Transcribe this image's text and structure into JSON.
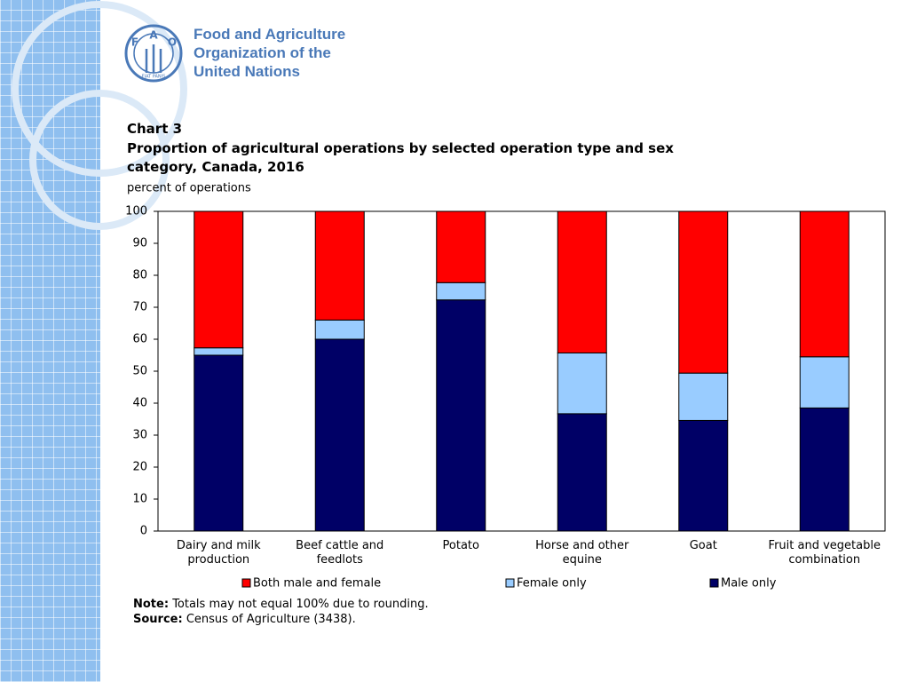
{
  "logo": {
    "letters": [
      "F",
      "A",
      "O"
    ],
    "motto": "FIAT PANIS",
    "name_lines": [
      "Food and Agriculture",
      "Organization of the",
      "United Nations"
    ]
  },
  "chart_data": {
    "type": "stacked_bar",
    "title": "Chart 3",
    "subtitle": "Proportion of agricultural operations by selected operation type and sex category, Canada, 2016",
    "y_label": "percent of operations",
    "categories": [
      "Dairy and milk production",
      "Beef cattle and feedlots",
      "Potato",
      "Horse and other equine",
      "Goat",
      "Fruit and vegetable combination"
    ],
    "series": [
      {
        "name": "Male only",
        "color": "#000066",
        "values": [
          55,
          60,
          72.3,
          36.7,
          34.6,
          38.5
        ]
      },
      {
        "name": "Female only",
        "color": "#99ccff",
        "values": [
          2.3,
          6,
          5.4,
          19,
          14.8,
          16
        ]
      },
      {
        "name": "Both male and female",
        "color": "#ff0000",
        "values": [
          42.7,
          34,
          22.3,
          44.3,
          50.6,
          45.5
        ]
      }
    ],
    "ylim": [
      0,
      100
    ],
    "yticks": [
      0,
      10,
      20,
      30,
      40,
      50,
      60,
      70,
      80,
      90,
      100
    ],
    "grid": false,
    "legend": "bottom",
    "note": {
      "label": "Note:",
      "text": "Totals may not equal 100% due to rounding."
    },
    "source": {
      "label": "Source:",
      "text": "Census of Agriculture (3438)."
    }
  }
}
